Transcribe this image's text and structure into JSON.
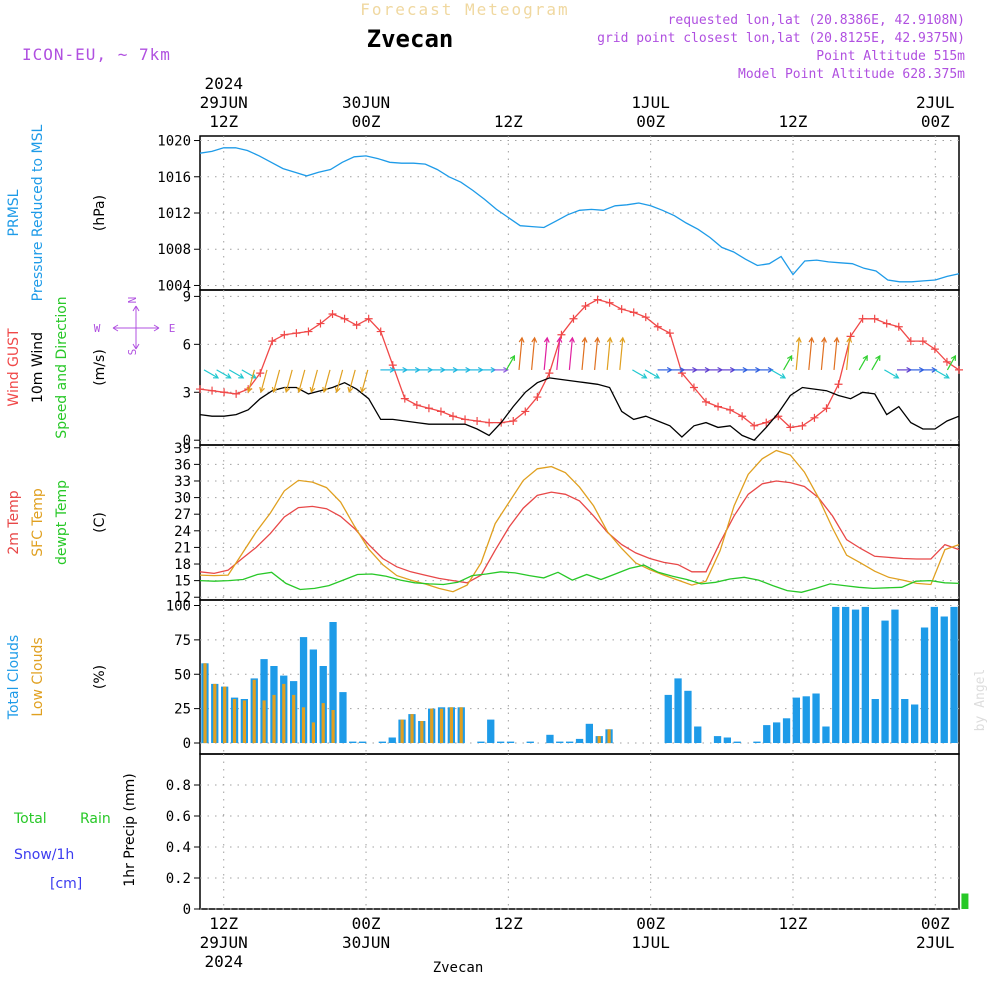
{
  "header": {
    "subtitle": "Forecast Meteogram",
    "title": "Zvecan",
    "model": "ICON-EU, ~ 7km",
    "requested": "requested lon,lat (20.8386E, 42.9108N)",
    "gridpoint": "grid point closest lon,lat (20.8125E, 42.9375N)",
    "altitude": "Point Altitude 515m",
    "model_altitude": "Model Point Altitude 628.375m"
  },
  "footer": {
    "station": "Zvecan",
    "credit": "by Angel"
  },
  "colors": {
    "pressure": "#1e9be8",
    "gust": "#f04848",
    "wind": "#000000",
    "green": "#28c828",
    "temp": "#e84848",
    "sfc": "#e0a020",
    "dew": "#28c828",
    "total": "#1e9be8",
    "low": "#e0a020",
    "compass": "#b050e0",
    "snow": "#3c3cf0",
    "rain": "#28c828"
  },
  "chart_data": {
    "type": "meteogram",
    "time_axis": {
      "start": "2024-06-29 05Z",
      "hours": 64,
      "top_ticks": [
        {
          "hour": 7,
          "lines": [
            "2024",
            "29JUN",
            "12Z"
          ]
        },
        {
          "hour": 19,
          "lines": [
            "30JUN",
            "00Z"
          ]
        },
        {
          "hour": 31,
          "lines": [
            "12Z"
          ]
        },
        {
          "hour": 43,
          "lines": [
            "1JUL",
            "00Z"
          ]
        },
        {
          "hour": 55,
          "lines": [
            "12Z"
          ]
        },
        {
          "hour": 67,
          "lines": [
            "2JUL",
            "00Z"
          ]
        }
      ],
      "bottom_ticks": [
        {
          "hour": 7,
          "lines": [
            "12Z",
            "29JUN",
            "2024"
          ]
        },
        {
          "hour": 19,
          "lines": [
            "00Z",
            "30JUN"
          ]
        },
        {
          "hour": 31,
          "lines": [
            "12Z"
          ]
        },
        {
          "hour": 43,
          "lines": [
            "00Z",
            "1JUL"
          ]
        },
        {
          "hour": 55,
          "lines": [
            "12Z"
          ]
        },
        {
          "hour": 67,
          "lines": [
            "00Z",
            "2JUL"
          ]
        }
      ]
    },
    "panels": [
      {
        "id": "pressure",
        "labels": [
          {
            "text": "PRMSL",
            "color": "#1e9be8"
          },
          {
            "text": "Pressure Reduced to MSL",
            "color": "#1e9be8"
          },
          {
            "text": "(hPa)",
            "color": "#000000"
          }
        ],
        "ylim": [
          1003.5,
          1020.5
        ],
        "yticks": [
          1004,
          1008,
          1012,
          1016,
          1020
        ],
        "series": [
          {
            "name": "PRMSL",
            "type": "line",
            "color": "#1e9be8",
            "values": [
              1018.6,
              1018.8,
              1019.2,
              1019.2,
              1018.9,
              1018.3,
              1017.6,
              1016.9,
              1016.5,
              1016.1,
              1016.5,
              1016.8,
              1017.6,
              1018.2,
              1018.3,
              1018.0,
              1017.6,
              1017.5,
              1017.5,
              1017.4,
              1016.8,
              1016.0,
              1015.4,
              1014.5,
              1013.5,
              1012.4,
              1011.5,
              1010.6,
              1010.5,
              1010.4,
              1011.1,
              1011.8,
              1012.3,
              1012.4,
              1012.3,
              1012.8,
              1012.9,
              1013.1,
              1012.8,
              1012.3,
              1011.7,
              1010.9,
              1010.2,
              1009.3,
              1008.2,
              1007.7,
              1006.9,
              1006.2,
              1006.4,
              1007.2,
              1005.2,
              1006.7,
              1006.8,
              1006.6,
              1006.5,
              1006.4,
              1005.9,
              1005.6,
              1004.6,
              1004.4,
              1004.4,
              1004.5,
              1004.6,
              1005.0,
              1005.3
            ]
          }
        ]
      },
      {
        "id": "wind",
        "labels": [
          {
            "text": "Wind GUST",
            "color": "#f04848"
          },
          {
            "text": "10m Wind",
            "color": "#000000"
          },
          {
            "text": "Speed and Direction",
            "color": "#28c828"
          },
          {
            "text": "(m/s)",
            "color": "#000000"
          }
        ],
        "ylim": [
          -0.3,
          9.4
        ],
        "yticks": [
          0,
          3,
          6,
          9
        ],
        "compass": {
          "n": "N",
          "w": "W",
          "e": "E",
          "s": "S"
        },
        "series": [
          {
            "name": "Wind GUST",
            "type": "line",
            "color": "#f04848",
            "marker": "+",
            "values": [
              3.2,
              3.1,
              3.0,
              2.9,
              3.2,
              4.2,
              6.2,
              6.6,
              6.7,
              6.8,
              7.3,
              7.9,
              7.6,
              7.2,
              7.6,
              6.8,
              4.7,
              2.6,
              2.2,
              2.0,
              1.8,
              1.5,
              1.3,
              1.2,
              1.1,
              1.1,
              1.2,
              1.8,
              2.7,
              4.2,
              6.6,
              7.6,
              8.4,
              8.8,
              8.6,
              8.2,
              8.0,
              7.7,
              7.1,
              6.7,
              4.2,
              3.3,
              2.4,
              2.1,
              1.9,
              1.5,
              0.9,
              1.1,
              1.5,
              0.8,
              0.9,
              1.4,
              2.0,
              3.5,
              6.5,
              7.6,
              7.6,
              7.3,
              7.1,
              6.2,
              6.2,
              5.7,
              4.9,
              4.4
            ]
          },
          {
            "name": "10m Wind",
            "type": "line",
            "color": "#000000",
            "values": [
              1.6,
              1.5,
              1.5,
              1.6,
              1.9,
              2.6,
              3.1,
              3.3,
              3.3,
              2.9,
              3.1,
              3.3,
              3.6,
              3.2,
              2.6,
              1.3,
              1.3,
              1.2,
              1.1,
              1.0,
              1.0,
              1.0,
              1.0,
              0.7,
              0.3,
              1.1,
              2.1,
              3.0,
              3.6,
              3.9,
              3.8,
              3.7,
              3.6,
              3.5,
              3.3,
              1.8,
              1.3,
              1.5,
              1.2,
              0.9,
              0.2,
              0.9,
              1.1,
              0.8,
              0.9,
              0.3,
              0.0,
              0.8,
              1.7,
              2.8,
              3.3,
              3.2,
              3.1,
              2.8,
              2.6,
              3.0,
              2.9,
              1.6,
              2.1,
              1.1,
              0.7,
              0.7,
              1.2,
              1.5
            ]
          }
        ]
      },
      {
        "id": "temperature",
        "labels": [
          {
            "text": "2m Temp",
            "color": "#e84848"
          },
          {
            "text": "SFC Temp",
            "color": "#e0a020"
          },
          {
            "text": "dewpt Temp",
            "color": "#28c828"
          },
          {
            "text": "(C)",
            "color": "#000000"
          }
        ],
        "ylim": [
          11.5,
          39.5
        ],
        "yticks": [
          12,
          15,
          18,
          21,
          24,
          27,
          30,
          33,
          36,
          39
        ],
        "series": [
          {
            "name": "2m Temp",
            "type": "line",
            "color": "#e84848",
            "values": [
              16.6,
              16.3,
              16.9,
              19.0,
              21.0,
              23.5,
              26.5,
              28.2,
              28.4,
              28.0,
              26.6,
              24.4,
              21.5,
              19.0,
              17.5,
              16.6,
              16.0,
              15.4,
              15.0,
              14.6,
              16.0,
              20.5,
              24.7,
              28.1,
              30.4,
              31.0,
              30.6,
              29.4,
              26.7,
              23.7,
              21.5,
              20.0,
              19.0,
              18.3,
              17.9,
              16.6,
              16.6,
              21.9,
              26.7,
              30.6,
              32.5,
              33.0,
              32.7,
              32.0,
              30.0,
              26.7,
              22.4,
              20.8,
              19.4,
              19.2,
              19.0,
              18.9,
              18.9,
              21.5,
              20.6
            ]
          },
          {
            "name": "SFC Temp",
            "type": "line",
            "color": "#e0a020",
            "values": [
              16.0,
              15.9,
              16.0,
              19.9,
              23.8,
              27.2,
              31.2,
              33.1,
              32.8,
              31.8,
              29.2,
              24.8,
              20.7,
              17.9,
              15.9,
              15.1,
              14.4,
              13.6,
              13.0,
              14.2,
              18.2,
              25.3,
              29.2,
              33.1,
              35.2,
              35.6,
              34.5,
              31.9,
              28.5,
              23.8,
              20.8,
              18.2,
              17.0,
              16.0,
              15.1,
              14.2,
              14.9,
              20.4,
              28.5,
              34.2,
              37.0,
              38.5,
              37.7,
              34.6,
              30.0,
              24.5,
              19.6,
              18.2,
              16.7,
              15.6,
              15.1,
              14.5,
              14.3,
              20.6,
              21.5
            ]
          },
          {
            "name": "dewpt Temp",
            "type": "line",
            "color": "#28c828",
            "values": [
              15.0,
              14.9,
              15.0,
              15.2,
              16.1,
              16.5,
              14.5,
              13.4,
              13.6,
              14.1,
              15.1,
              16.1,
              16.2,
              15.8,
              15.1,
              14.6,
              14.4,
              14.3,
              14.7,
              15.9,
              16.2,
              16.6,
              16.4,
              15.9,
              15.5,
              16.5,
              15.1,
              16.1,
              15.2,
              16.2,
              17.2,
              17.8,
              16.5,
              15.8,
              15.2,
              14.4,
              14.7,
              15.3,
              15.6,
              15.1,
              14.1,
              13.2,
              12.9,
              13.6,
              14.4,
              14.1,
              13.8,
              13.6,
              13.7,
              13.8,
              14.9,
              15.0,
              14.6,
              14.5
            ]
          }
        ]
      },
      {
        "id": "clouds",
        "labels": [
          {
            "text": "Total Clouds",
            "color": "#1e9be8"
          },
          {
            "text": "Low Clouds",
            "color": "#e0a020"
          },
          {
            "text": "(%)",
            "color": "#000000"
          }
        ],
        "ylim": [
          -8,
          104
        ],
        "yticks": [
          0,
          25,
          50,
          75,
          100
        ],
        "series": [
          {
            "name": "Total Clouds",
            "type": "bar",
            "color": "#1e9be8",
            "values": [
              58,
              43,
              41,
              33,
              32,
              47,
              61,
              56,
              49,
              45,
              77,
              68,
              56,
              88,
              37,
              1,
              1,
              0,
              1,
              4,
              17,
              21,
              16,
              25,
              26,
              26,
              26,
              0,
              1,
              17,
              1,
              1,
              0,
              1,
              0,
              6,
              1,
              1,
              3,
              14,
              5,
              10,
              0,
              0,
              0,
              0,
              0,
              35,
              47,
              38,
              12,
              0,
              5,
              4,
              1,
              0,
              1,
              13,
              15,
              18,
              33,
              34,
              36,
              12,
              99,
              99,
              97,
              99,
              32,
              89,
              97,
              32,
              28,
              84,
              99,
              92,
              99
            ]
          },
          {
            "name": "Low Clouds",
            "type": "bar",
            "color": "#e0a020",
            "values": [
              58,
              43,
              41,
              32,
              31,
              46,
              31,
              35,
              43,
              35,
              26,
              15,
              29,
              24,
              0,
              0,
              0,
              0,
              0,
              0,
              17,
              21,
              16,
              25,
              25,
              26,
              26,
              0,
              0,
              0,
              0,
              0,
              0,
              0,
              0,
              0,
              0,
              0,
              0,
              0,
              5,
              10,
              0,
              0,
              0,
              0,
              0,
              0,
              0,
              0,
              0,
              0,
              0,
              0,
              0,
              0,
              0,
              0,
              0,
              0,
              0,
              0,
              0,
              0,
              0,
              0,
              0,
              0,
              0,
              0,
              0,
              0,
              0,
              0,
              0,
              0,
              0
            ]
          }
        ]
      },
      {
        "id": "precip",
        "labels": [
          {
            "text": "Total",
            "color": "#28c828"
          },
          {
            "text": "Rain",
            "color": "#28c828"
          },
          {
            "text": "Snow/1h",
            "color": "#3c3cf0"
          },
          {
            "text": "[cm]",
            "color": "#3c3cf0"
          },
          {
            "text": "1hr Precip (mm)",
            "color": "#000000"
          }
        ],
        "ylim": [
          0,
          1.0
        ],
        "yticks": [
          0,
          0.2,
          0.4,
          0.6,
          0.8
        ],
        "series": [
          {
            "name": "Total Rain",
            "type": "bar",
            "color": "#28c828",
            "points": [
              {
                "hour": 69.5,
                "value": 0.1
              }
            ]
          }
        ]
      }
    ]
  }
}
